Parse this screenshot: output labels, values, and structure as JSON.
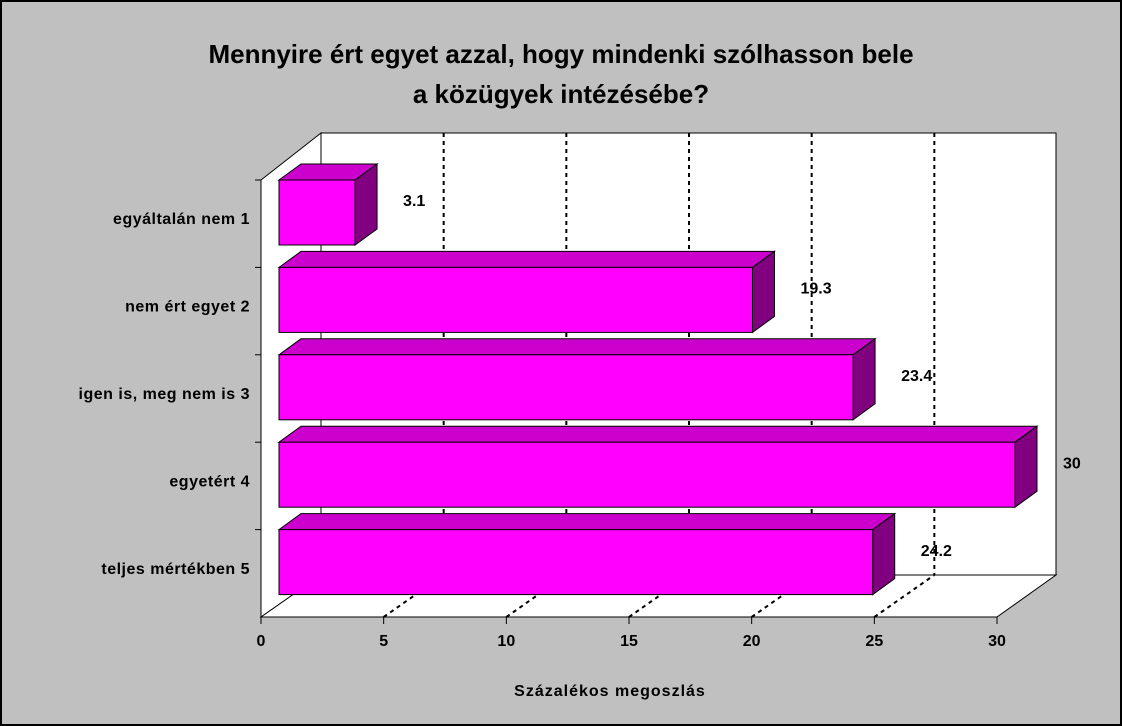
{
  "chart_data": {
    "type": "bar3d",
    "title": [
      "Mennyire ért egyet azzal, hogy mindenki szólhasson bele",
      "a közügyek intézésébe?"
    ],
    "categories": [
      "egyáltalán nem 1",
      "nem ért egyet 2",
      "igen is, meg nem is 3",
      "egyetért 4",
      "teljes mértékben 5"
    ],
    "values": [
      3.1,
      19.3,
      23.4,
      30,
      24.2
    ],
    "color": "#ff00ff",
    "xlabel": "Százalékos megoszlás",
    "xlim": [
      0,
      30
    ],
    "xticks": [
      0,
      5,
      10,
      15,
      20,
      25,
      30
    ],
    "grid": true
  }
}
